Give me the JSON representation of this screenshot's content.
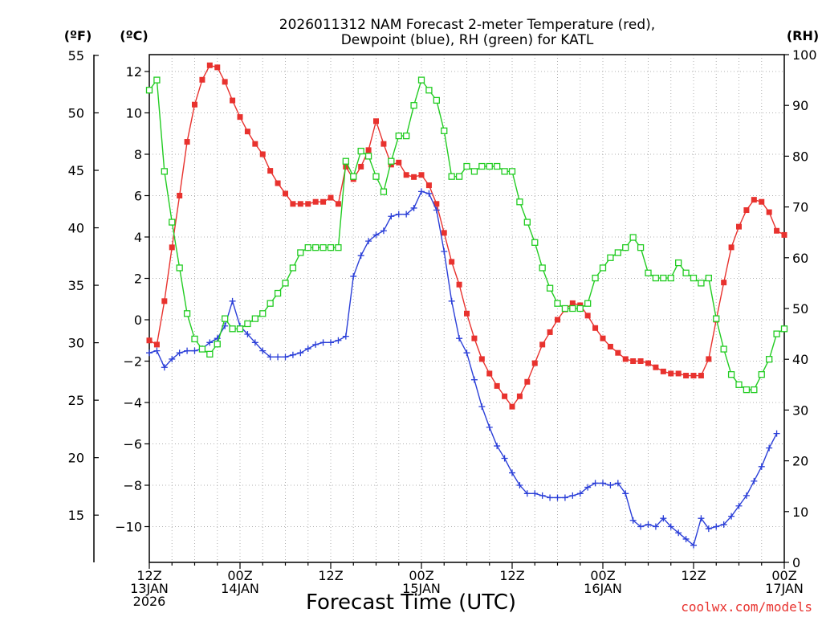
{
  "chart_data": {
    "type": "line",
    "title": "2026011312 NAM Forecast 2-meter Temperature (red),",
    "title_line2": "Dewpoint (blue), RH (green) for KATL",
    "xlabel": "Forecast Time (UTC)",
    "y_left_c_unit": "(ºC)",
    "y_left_f_unit": "(ºF)",
    "y_right_unit": "(RH)",
    "watermark": "coolwx.com/models",
    "grid": true,
    "x_unit": "forecast hours from 2026-01-13 12Z",
    "xlim": [
      0,
      84
    ],
    "ylim_c": [
      -12,
      12.7
    ],
    "ylim_rh": [
      0,
      100
    ],
    "x_ticks": [
      {
        "hour": 0,
        "line1": "12Z",
        "line2": "13JAN",
        "line3": "2026"
      },
      {
        "hour": 12,
        "line1": "00Z",
        "line2": "14JAN",
        "line3": ""
      },
      {
        "hour": 24,
        "line1": "12Z",
        "line2": "",
        "line3": ""
      },
      {
        "hour": 36,
        "line1": "00Z",
        "line2": "15JAN",
        "line3": ""
      },
      {
        "hour": 48,
        "line1": "12Z",
        "line2": "",
        "line3": ""
      },
      {
        "hour": 60,
        "line1": "00Z",
        "line2": "16JAN",
        "line3": ""
      },
      {
        "hour": 72,
        "line1": "12Z",
        "line2": "",
        "line3": ""
      },
      {
        "hour": 84,
        "line1": "00Z",
        "line2": "17JAN",
        "line3": ""
      }
    ],
    "y_ticks_c": [
      "12",
      "10",
      "8",
      "6",
      "4",
      "2",
      "0",
      "−2",
      "−4",
      "−6",
      "−8",
      "−10"
    ],
    "y_ticks_f": [
      "55",
      "50",
      "45",
      "40",
      "35",
      "30",
      "25",
      "20",
      "15"
    ],
    "y_ticks_rh": [
      "100",
      "90",
      "80",
      "70",
      "60",
      "50",
      "40",
      "30",
      "20",
      "10",
      "0"
    ],
    "series": [
      {
        "name": "Temperature (red)",
        "unit": "C",
        "color": "#e8322e",
        "marker": "square-filled",
        "values": [
          [
            0,
            -1.0
          ],
          [
            1,
            -1.2
          ],
          [
            2,
            0.9
          ],
          [
            3,
            3.5
          ],
          [
            4,
            6.0
          ],
          [
            5,
            8.6
          ],
          [
            6,
            10.4
          ],
          [
            7,
            11.6
          ],
          [
            8,
            12.3
          ],
          [
            9,
            12.2
          ],
          [
            10,
            11.5
          ],
          [
            11,
            10.6
          ],
          [
            12,
            9.8
          ],
          [
            13,
            9.1
          ],
          [
            14,
            8.5
          ],
          [
            15,
            8.0
          ],
          [
            16,
            7.2
          ],
          [
            17,
            6.6
          ],
          [
            18,
            6.1
          ],
          [
            19,
            5.6
          ],
          [
            20,
            5.6
          ],
          [
            21,
            5.6
          ],
          [
            22,
            5.7
          ],
          [
            23,
            5.7
          ],
          [
            24,
            5.9
          ],
          [
            25,
            5.6
          ],
          [
            26,
            7.4
          ],
          [
            27,
            6.8
          ],
          [
            28,
            7.4
          ],
          [
            29,
            8.2
          ],
          [
            30,
            9.6
          ],
          [
            31,
            8.5
          ],
          [
            32,
            7.5
          ],
          [
            33,
            7.6
          ],
          [
            34,
            7.0
          ],
          [
            35,
            6.9
          ],
          [
            36,
            7.0
          ],
          [
            37,
            6.5
          ],
          [
            38,
            5.6
          ],
          [
            39,
            4.2
          ],
          [
            40,
            2.8
          ],
          [
            41,
            1.7
          ],
          [
            42,
            0.3
          ],
          [
            43,
            -0.9
          ],
          [
            44,
            -1.9
          ],
          [
            45,
            -2.6
          ],
          [
            46,
            -3.2
          ],
          [
            47,
            -3.7
          ],
          [
            48,
            -4.2
          ],
          [
            49,
            -3.7
          ],
          [
            50,
            -3.0
          ],
          [
            51,
            -2.1
          ],
          [
            52,
            -1.2
          ],
          [
            53,
            -0.6
          ],
          [
            54,
            0.0
          ],
          [
            55,
            0.5
          ],
          [
            56,
            0.8
          ],
          [
            57,
            0.7
          ],
          [
            58,
            0.2
          ],
          [
            59,
            -0.4
          ],
          [
            60,
            -0.9
          ],
          [
            61,
            -1.3
          ],
          [
            62,
            -1.6
          ],
          [
            63,
            -1.9
          ],
          [
            64,
            -2.0
          ],
          [
            65,
            -2.0
          ],
          [
            66,
            -2.1
          ],
          [
            67,
            -2.3
          ],
          [
            68,
            -2.5
          ],
          [
            69,
            -2.6
          ],
          [
            70,
            -2.6
          ],
          [
            71,
            -2.7
          ],
          [
            72,
            -2.7
          ],
          [
            73,
            -2.7
          ],
          [
            74,
            -1.9
          ],
          [
            75,
            0.0
          ],
          [
            76,
            1.8
          ],
          [
            77,
            3.5
          ],
          [
            78,
            4.5
          ],
          [
            79,
            5.3
          ],
          [
            80,
            5.8
          ],
          [
            81,
            5.7
          ],
          [
            82,
            5.2
          ],
          [
            83,
            4.3
          ],
          [
            84,
            4.1
          ]
        ]
      },
      {
        "name": "Dewpoint (blue)",
        "unit": "C",
        "color": "#2b3fd8",
        "marker": "plus",
        "values": [
          [
            0,
            -1.6
          ],
          [
            1,
            -1.5
          ],
          [
            2,
            -2.3
          ],
          [
            3,
            -1.9
          ],
          [
            4,
            -1.6
          ],
          [
            5,
            -1.5
          ],
          [
            6,
            -1.5
          ],
          [
            7,
            -1.4
          ],
          [
            8,
            -1.1
          ],
          [
            9,
            -0.9
          ],
          [
            10,
            -0.3
          ],
          [
            11,
            0.9
          ],
          [
            12,
            -0.3
          ],
          [
            13,
            -0.7
          ],
          [
            14,
            -1.1
          ],
          [
            15,
            -1.5
          ],
          [
            16,
            -1.8
          ],
          [
            17,
            -1.8
          ],
          [
            18,
            -1.8
          ],
          [
            19,
            -1.7
          ],
          [
            20,
            -1.6
          ],
          [
            21,
            -1.4
          ],
          [
            22,
            -1.2
          ],
          [
            23,
            -1.1
          ],
          [
            24,
            -1.1
          ],
          [
            25,
            -1.0
          ],
          [
            26,
            -0.8
          ],
          [
            27,
            2.1
          ],
          [
            28,
            3.1
          ],
          [
            29,
            3.8
          ],
          [
            30,
            4.1
          ],
          [
            31,
            4.3
          ],
          [
            32,
            5.0
          ],
          [
            33,
            5.1
          ],
          [
            34,
            5.1
          ],
          [
            35,
            5.4
          ],
          [
            36,
            6.2
          ],
          [
            37,
            6.1
          ],
          [
            38,
            5.3
          ],
          [
            39,
            3.3
          ],
          [
            40,
            0.9
          ],
          [
            41,
            -0.9
          ],
          [
            42,
            -1.6
          ],
          [
            43,
            -2.9
          ],
          [
            44,
            -4.2
          ],
          [
            45,
            -5.2
          ],
          [
            46,
            -6.1
          ],
          [
            47,
            -6.7
          ],
          [
            48,
            -7.4
          ],
          [
            49,
            -8.0
          ],
          [
            50,
            -8.4
          ],
          [
            51,
            -8.4
          ],
          [
            52,
            -8.5
          ],
          [
            53,
            -8.6
          ],
          [
            54,
            -8.6
          ],
          [
            55,
            -8.6
          ],
          [
            56,
            -8.5
          ],
          [
            57,
            -8.4
          ],
          [
            58,
            -8.1
          ],
          [
            59,
            -7.9
          ],
          [
            60,
            -7.9
          ],
          [
            61,
            -8.0
          ],
          [
            62,
            -7.9
          ],
          [
            63,
            -8.4
          ],
          [
            64,
            -9.7
          ],
          [
            65,
            -10.0
          ],
          [
            66,
            -9.9
          ],
          [
            67,
            -10.0
          ],
          [
            68,
            -9.6
          ],
          [
            69,
            -10.0
          ],
          [
            70,
            -10.3
          ],
          [
            71,
            -10.6
          ],
          [
            72,
            -10.9
          ],
          [
            73,
            -9.6
          ],
          [
            74,
            -10.1
          ],
          [
            75,
            -10.0
          ],
          [
            76,
            -9.9
          ],
          [
            77,
            -9.5
          ],
          [
            78,
            -9.0
          ],
          [
            79,
            -8.5
          ],
          [
            80,
            -7.8
          ],
          [
            81,
            -7.1
          ],
          [
            82,
            -6.2
          ],
          [
            83,
            -5.5
          ]
        ]
      },
      {
        "name": "RH (green)",
        "unit": "%",
        "color": "#22cc22",
        "marker": "square-open",
        "values": [
          [
            0,
            93
          ],
          [
            1,
            95
          ],
          [
            2,
            77
          ],
          [
            3,
            67
          ],
          [
            4,
            58
          ],
          [
            5,
            49
          ],
          [
            6,
            44
          ],
          [
            7,
            42
          ],
          [
            8,
            41
          ],
          [
            9,
            43
          ],
          [
            10,
            48
          ],
          [
            11,
            46
          ],
          [
            12,
            46
          ],
          [
            13,
            47
          ],
          [
            14,
            48
          ],
          [
            15,
            49
          ],
          [
            16,
            51
          ],
          [
            17,
            53
          ],
          [
            18,
            55
          ],
          [
            19,
            58
          ],
          [
            20,
            61
          ],
          [
            21,
            62
          ],
          [
            22,
            62
          ],
          [
            23,
            62
          ],
          [
            24,
            62
          ],
          [
            25,
            62
          ],
          [
            26,
            79
          ],
          [
            27,
            76
          ],
          [
            28,
            81
          ],
          [
            29,
            80
          ],
          [
            30,
            76
          ],
          [
            31,
            73
          ],
          [
            32,
            79
          ],
          [
            33,
            84
          ],
          [
            34,
            84
          ],
          [
            35,
            90
          ],
          [
            36,
            95
          ],
          [
            37,
            93
          ],
          [
            38,
            91
          ],
          [
            39,
            85
          ],
          [
            40,
            76
          ],
          [
            41,
            76
          ],
          [
            42,
            78
          ],
          [
            43,
            77
          ],
          [
            44,
            78
          ],
          [
            45,
            78
          ],
          [
            46,
            78
          ],
          [
            47,
            77
          ],
          [
            48,
            77
          ],
          [
            49,
            71
          ],
          [
            50,
            67
          ],
          [
            51,
            63
          ],
          [
            52,
            58
          ],
          [
            53,
            54
          ],
          [
            54,
            51
          ],
          [
            55,
            50
          ],
          [
            56,
            50
          ],
          [
            57,
            50
          ],
          [
            58,
            51
          ],
          [
            59,
            56
          ],
          [
            60,
            58
          ],
          [
            61,
            60
          ],
          [
            62,
            61
          ],
          [
            63,
            62
          ],
          [
            64,
            64
          ],
          [
            65,
            62
          ],
          [
            66,
            57
          ],
          [
            67,
            56
          ],
          [
            68,
            56
          ],
          [
            69,
            56
          ],
          [
            70,
            59
          ],
          [
            71,
            57
          ],
          [
            72,
            56
          ],
          [
            73,
            55
          ],
          [
            74,
            56
          ],
          [
            75,
            48
          ],
          [
            76,
            42
          ],
          [
            77,
            37
          ],
          [
            78,
            35
          ],
          [
            79,
            34
          ],
          [
            80,
            34
          ],
          [
            81,
            37
          ],
          [
            82,
            40
          ],
          [
            83,
            45
          ],
          [
            84,
            46
          ]
        ]
      }
    ]
  }
}
